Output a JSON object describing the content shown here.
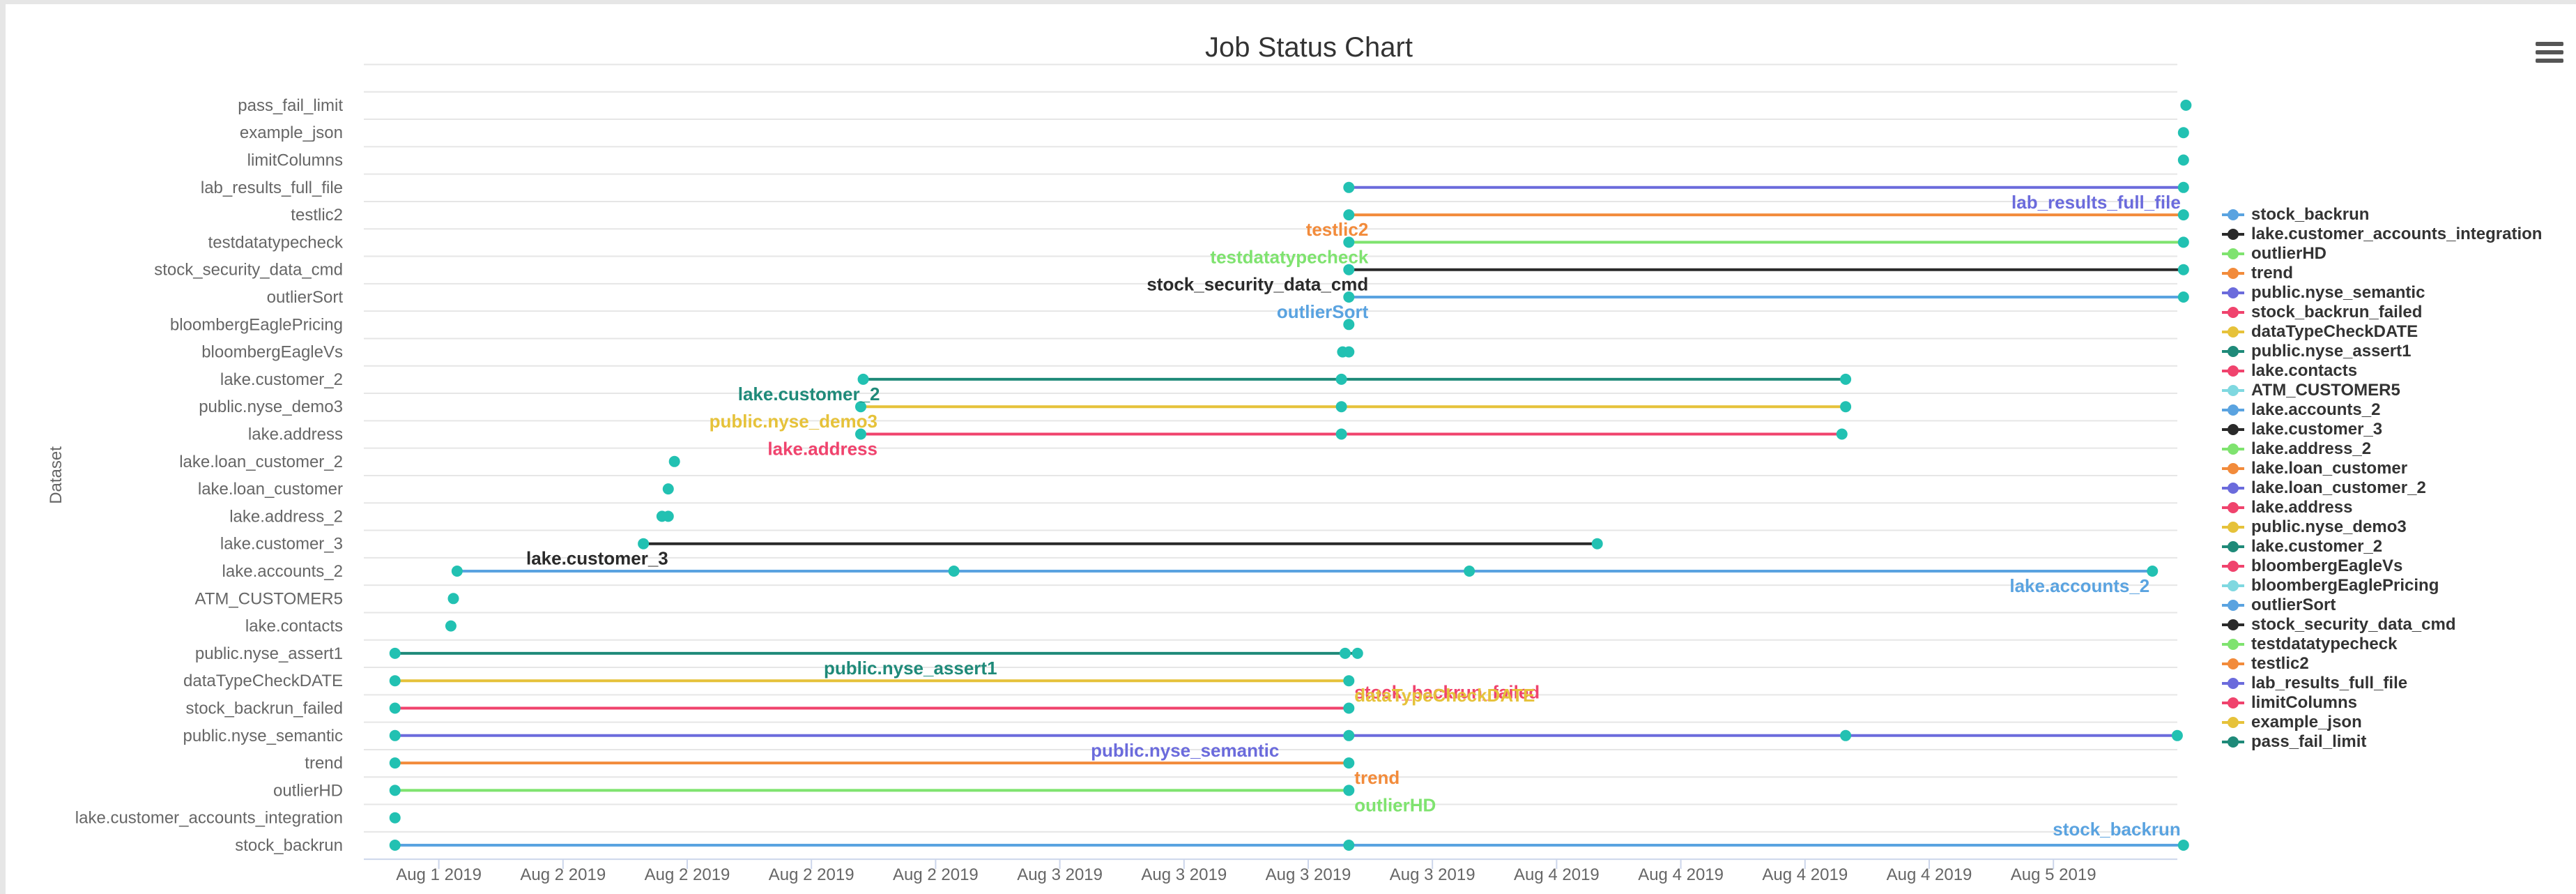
{
  "chart_data": {
    "type": "scatter",
    "title": "Job Status Chart",
    "xlabel": "",
    "ylabel": "Dataset",
    "x_ticks": [
      "Aug 1 2019",
      "Aug 2 2019",
      "Aug 2 2019",
      "Aug 2 2019",
      "Aug 2 2019",
      "Aug 3 2019",
      "Aug 3 2019",
      "Aug 3 2019",
      "Aug 3 2019",
      "Aug 4 2019",
      "Aug 4 2019",
      "Aug 4 2019",
      "Aug 4 2019",
      "Aug 5 2019"
    ],
    "x_unit": "day",
    "xlim": [
      0,
      14.5
    ],
    "grid": "horizontal",
    "legend_position": "right",
    "point_color": "#22c1b2",
    "categories": [
      "stock_backrun",
      "lake.customer_accounts_integration",
      "outlierHD",
      "trend",
      "public.nyse_semantic",
      "stock_backrun_failed",
      "dataTypeCheckDATE",
      "public.nyse_assert1",
      "lake.contacts",
      "ATM_CUSTOMER5",
      "lake.accounts_2",
      "lake.customer_3",
      "lake.address_2",
      "lake.loan_customer",
      "lake.loan_customer_2",
      "lake.address",
      "public.nyse_demo3",
      "lake.customer_2",
      "bloombergEagleVs",
      "bloombergEaglePricing",
      "outlierSort",
      "stock_security_data_cmd",
      "testdatatypecheck",
      "testlic2",
      "lab_results_full_file",
      "limitColumns",
      "example_json",
      "pass_fail_limit"
    ],
    "series": [
      {
        "name": "stock_backrun",
        "color": "#5aa3e0",
        "row": 0,
        "points": [
          0.15,
          7.83,
          14.55
        ],
        "label": "stock_backrun",
        "label_at": "end-above"
      },
      {
        "name": "lake.customer_accounts_integration",
        "color": "#2a2a2a",
        "row": 1,
        "points": [
          0.15
        ],
        "label": ""
      },
      {
        "name": "outlierHD",
        "color": "#7fe36f",
        "row": 2,
        "points": [
          0.15,
          7.83
        ],
        "label": "outlierHD",
        "label_at": "end-below"
      },
      {
        "name": "trend",
        "color": "#f28b3b",
        "row": 3,
        "points": [
          0.15,
          7.83
        ],
        "label": "trend",
        "label_at": "end-below"
      },
      {
        "name": "public.nyse_semantic",
        "color": "#6b6bdc",
        "row": 4,
        "points": [
          0.15,
          7.83,
          11.83,
          14.5
        ],
        "label": "public.nyse_semantic",
        "label_at": "mid-below"
      },
      {
        "name": "stock_backrun_failed",
        "color": "#f0436d",
        "row": 5,
        "points": [
          0.15,
          7.83
        ],
        "label": "stock_backrun_failed",
        "label_at": "end-above"
      },
      {
        "name": "dataTypeCheckDATE",
        "color": "#e6c23a",
        "row": 6,
        "points": [
          0.15,
          7.83
        ],
        "label": "dataTypeCheckDATE",
        "label_at": "end-below"
      },
      {
        "name": "public.nyse_assert1",
        "color": "#1f8a79",
        "row": 7,
        "points": [
          0.15,
          7.8,
          7.9
        ],
        "label": "public.nyse_assert1",
        "label_at": "start-below"
      },
      {
        "name": "lake.contacts",
        "color": "#f0436d",
        "row": 8,
        "points": [
          0.6
        ],
        "label": ""
      },
      {
        "name": "ATM_CUSTOMER5",
        "color": "#7fd8e0",
        "row": 9,
        "points": [
          0.62
        ],
        "label": ""
      },
      {
        "name": "lake.accounts_2",
        "color": "#5aa3e0",
        "row": 10,
        "points": [
          0.65,
          4.65,
          8.8,
          14.3
        ],
        "label": "lake.accounts_2",
        "label_at": "end-below"
      },
      {
        "name": "lake.customer_3",
        "color": "#2a2a2a",
        "row": 11,
        "points": [
          2.15,
          9.83
        ],
        "label": "lake.customer_3",
        "label_at": "start-below"
      },
      {
        "name": "lake.address_2",
        "color": "#7fe36f",
        "row": 12,
        "points": [
          2.3,
          2.35
        ],
        "label": ""
      },
      {
        "name": "lake.loan_customer",
        "color": "#f28b3b",
        "row": 13,
        "points": [
          2.35
        ],
        "label": ""
      },
      {
        "name": "lake.loan_customer_2",
        "color": "#6b6bdc",
        "row": 14,
        "points": [
          2.4
        ],
        "label": ""
      },
      {
        "name": "lake.address",
        "color": "#f0436d",
        "row": 15,
        "points": [
          3.9,
          7.77,
          11.8
        ],
        "label": "lake.address",
        "label_at": "start-below"
      },
      {
        "name": "public.nyse_demo3",
        "color": "#e6c23a",
        "row": 16,
        "points": [
          3.9,
          7.77,
          11.83
        ],
        "label": "public.nyse_demo3",
        "label_at": "start-below"
      },
      {
        "name": "lake.customer_2",
        "color": "#1f8a79",
        "row": 17,
        "points": [
          3.92,
          7.77,
          11.83
        ],
        "label": "lake.customer_2",
        "label_at": "start-below"
      },
      {
        "name": "bloombergEagleVs",
        "color": "#f0436d",
        "row": 18,
        "points": [
          7.78,
          7.83
        ],
        "label": ""
      },
      {
        "name": "bloombergEaglePricing",
        "color": "#7fd8e0",
        "row": 19,
        "points": [
          7.83
        ],
        "label": ""
      },
      {
        "name": "outlierSort",
        "color": "#5aa3e0",
        "row": 20,
        "points": [
          7.83,
          14.55
        ],
        "label": "outlierSort",
        "label_at": "start-below"
      },
      {
        "name": "stock_security_data_cmd",
        "color": "#2a2a2a",
        "row": 21,
        "points": [
          7.83,
          14.55
        ],
        "label": "stock_security_data_cmd",
        "label_at": "start-below"
      },
      {
        "name": "testdatatypecheck",
        "color": "#7fe36f",
        "row": 22,
        "points": [
          7.83,
          14.55
        ],
        "label": "testdatatypecheck",
        "label_at": "start-below"
      },
      {
        "name": "testlic2",
        "color": "#f28b3b",
        "row": 23,
        "points": [
          7.83,
          14.55
        ],
        "label": "testlic2",
        "label_at": "start-below"
      },
      {
        "name": "lab_results_full_file",
        "color": "#6b6bdc",
        "row": 24,
        "points": [
          7.83,
          14.55
        ],
        "label": "lab_results_full_file",
        "label_at": "end-below"
      },
      {
        "name": "limitColumns",
        "color": "#f0436d",
        "row": 25,
        "points": [
          14.55
        ],
        "label": ""
      },
      {
        "name": "example_json",
        "color": "#e6c23a",
        "row": 26,
        "points": [
          14.55
        ],
        "label": ""
      },
      {
        "name": "pass_fail_limit",
        "color": "#1f8a79",
        "row": 27,
        "points": [
          14.57
        ],
        "label": ""
      }
    ]
  },
  "ui": {
    "menu_icon": "hamburger-menu-icon"
  }
}
